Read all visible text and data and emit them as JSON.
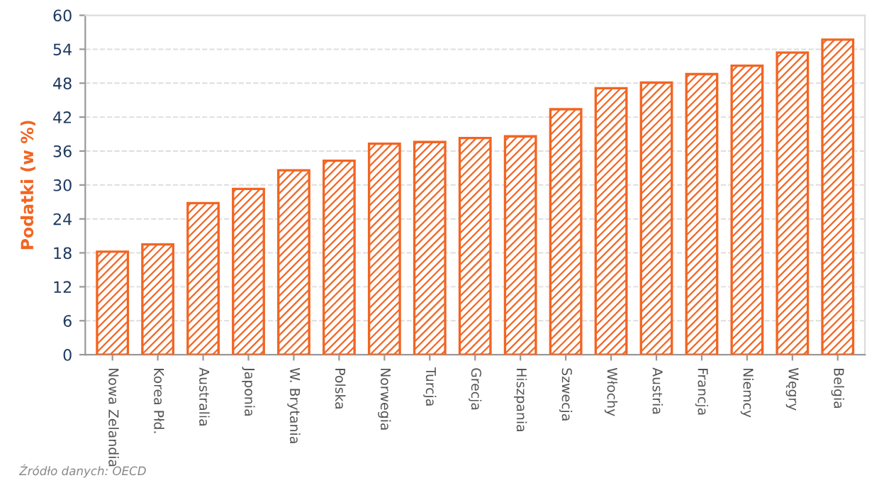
{
  "chart_data": {
    "type": "bar",
    "ylabel": "Podatki (w %)",
    "categories": [
      "Nowa Zelandia",
      "Korea Płd.",
      "Australia",
      "Japonia",
      "W. Brytania",
      "Polska",
      "Norwegia",
      "Turcja",
      "Grecja",
      "Hiszpania",
      "Szwecja",
      "Włochy",
      "Austria",
      "Francja",
      "Niemcy",
      "Węgry",
      "Belgia"
    ],
    "values": [
      18.2,
      19.5,
      26.8,
      29.3,
      32.6,
      34.3,
      37.3,
      37.6,
      38.3,
      38.6,
      43.4,
      47.1,
      48.1,
      49.6,
      51.1,
      53.4,
      55.7
    ],
    "color": "#f26522",
    "ylim": [
      0,
      60
    ],
    "yticks": [
      0,
      6,
      12,
      18,
      24,
      30,
      36,
      42,
      48,
      54,
      60
    ],
    "grid": "y",
    "legend": false,
    "annotations": [
      "Źródło danych: OECD"
    ]
  }
}
